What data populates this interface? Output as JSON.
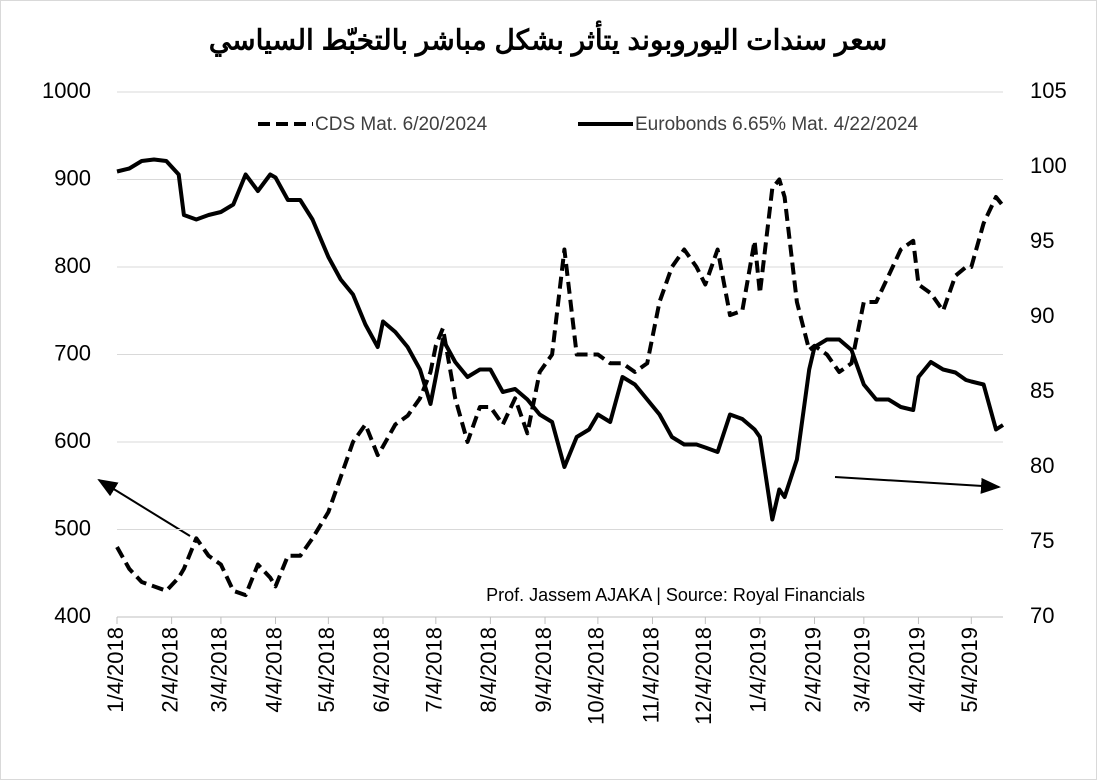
{
  "chart_data": {
    "type": "line",
    "title": "سعر سندات اليوروبوند يتأثر بشكل مباشر بالتخبّط السياسي",
    "annotation": "Prof. Jassem AJAKA | Source: Royal Financials",
    "x": [
      "1/4/2018",
      "1/11/2018",
      "1/18/2018",
      "1/25/2018",
      "2/1/2018",
      "2/8/2018",
      "2/11/2018",
      "2/18/2018",
      "2/25/2018",
      "3/4/2018",
      "3/11/2018",
      "3/18/2018",
      "3/25/2018",
      "4/1/2018",
      "4/4/2018",
      "4/11/2018",
      "4/18/2018",
      "4/25/2018",
      "5/4/2018",
      "5/11/2018",
      "5/18/2018",
      "5/25/2018",
      "6/1/2018",
      "6/4/2018",
      "6/11/2018",
      "6/18/2018",
      "6/25/2018",
      "7/1/2018",
      "7/4/2018",
      "7/8/2018",
      "7/15/2018",
      "7/22/2018",
      "7/29/2018",
      "8/4/2018",
      "8/11/2018",
      "8/18/2018",
      "8/25/2018",
      "9/1/2018",
      "9/8/2018",
      "9/15/2018",
      "9/22/2018",
      "9/29/2018",
      "10/4/2018",
      "10/11/2018",
      "10/18/2018",
      "10/25/2018",
      "11/1/2018",
      "11/8/2018",
      "11/15/2018",
      "11/22/2018",
      "11/29/2018",
      "12/4/2018",
      "12/11/2018",
      "12/18/2018",
      "12/25/2018",
      "1/1/2019",
      "1/4/2019",
      "1/11/2019",
      "1/15/2019",
      "1/18/2019",
      "1/25/2019",
      "2/1/2019",
      "2/4/2019",
      "2/11/2019",
      "2/18/2019",
      "2/25/2019",
      "3/4/2019",
      "3/11/2019",
      "3/18/2019",
      "3/25/2019",
      "4/1/2019",
      "4/4/2019",
      "4/11/2019",
      "4/18/2019",
      "4/25/2019",
      "5/1/2019",
      "5/4/2019",
      "5/11/2019",
      "5/18/2019",
      "5/22/2019"
    ],
    "series": [
      {
        "name": "CDS Mat. 6/20/2024",
        "color": "#000000",
        "line_style": "dashed",
        "axis": "y",
        "values": [
          480,
          455,
          440,
          435,
          430,
          445,
          455,
          490,
          470,
          460,
          430,
          425,
          460,
          445,
          435,
          470,
          470,
          490,
          520,
          560,
          600,
          620,
          585,
          595,
          620,
          630,
          650,
          680,
          710,
          730,
          650,
          600,
          640,
          640,
          620,
          650,
          610,
          680,
          700,
          820,
          700,
          700,
          700,
          690,
          690,
          680,
          690,
          760,
          800,
          820,
          800,
          780,
          820,
          745,
          750,
          830,
          770,
          890,
          900,
          880,
          760,
          705,
          710,
          700,
          680,
          690,
          760,
          760,
          790,
          820,
          830,
          780,
          770,
          750,
          790,
          800,
          800,
          850,
          880,
          870
        ]
      },
      {
        "name": "Eurobonds 6.65% Mat. 4/22/2024",
        "color": "#000000",
        "line_style": "solid",
        "axis": "y2",
        "values": [
          99.7,
          99.9,
          100.4,
          100.5,
          100.4,
          99.5,
          96.8,
          96.5,
          96.8,
          97.0,
          97.5,
          99.5,
          98.4,
          99.5,
          99.3,
          97.8,
          97.8,
          96.5,
          94.0,
          92.5,
          91.5,
          89.5,
          88.0,
          89.7,
          89.0,
          88.0,
          86.5,
          84.2,
          86.0,
          88.5,
          87.0,
          86.0,
          86.5,
          86.5,
          85.0,
          85.2,
          84.5,
          83.5,
          83.0,
          80.0,
          82.0,
          82.5,
          83.5,
          83.0,
          86.0,
          85.5,
          84.5,
          83.5,
          82.0,
          81.5,
          81.5,
          81.3,
          81.0,
          83.5,
          83.2,
          82.5,
          82.0,
          76.5,
          78.5,
          78.0,
          80.5,
          86.5,
          88.0,
          88.5,
          88.5,
          87.8,
          85.5,
          84.5,
          84.5,
          84.0,
          83.8,
          86.0,
          87.0,
          86.5,
          86.3,
          85.8,
          85.7,
          85.5,
          82.5,
          82.8
        ]
      }
    ],
    "xlim": [
      "1/4/2018",
      "5/22/2019"
    ],
    "xticks": [
      "1/4/2018",
      "2/4/2018",
      "3/4/2018",
      "4/4/2018",
      "5/4/2018",
      "6/4/2018",
      "7/4/2018",
      "8/4/2018",
      "9/4/2018",
      "10/4/2018",
      "11/4/2018",
      "12/4/2018",
      "1/4/2019",
      "2/4/2019",
      "3/4/2019",
      "4/4/2019",
      "5/4/2019"
    ],
    "ylim": [
      400,
      1000
    ],
    "yticks": [
      400,
      500,
      600,
      700,
      800,
      900,
      1000
    ],
    "y2lim": [
      70,
      105
    ],
    "y2ticks": [
      70,
      75,
      80,
      85,
      90,
      95,
      100,
      105
    ],
    "grid": true,
    "legend": "top"
  }
}
